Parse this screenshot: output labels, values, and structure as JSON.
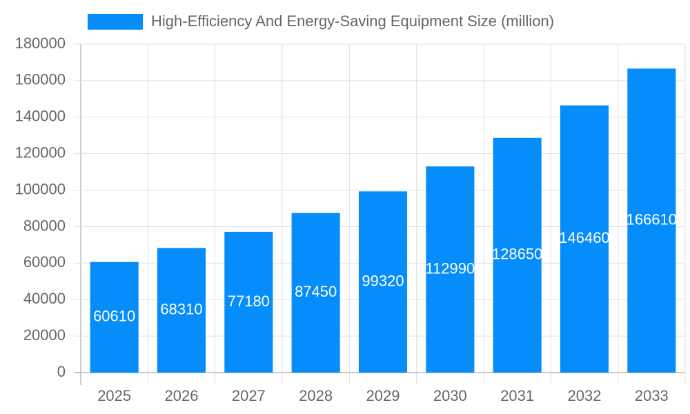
{
  "chart_data": {
    "type": "bar",
    "categories": [
      "2025",
      "2026",
      "2027",
      "2028",
      "2029",
      "2030",
      "2031",
      "2032",
      "2033"
    ],
    "series": [
      {
        "name": "High-Efficiency And Energy-Saving Equipment Size (million)",
        "color": "#058dfc",
        "values": [
          60610,
          68310,
          77180,
          87450,
          99320,
          112990,
          128650,
          146460,
          166610
        ]
      }
    ],
    "ylim": [
      0,
      180000
    ],
    "yticks": [
      0,
      20000,
      40000,
      60000,
      80000,
      100000,
      120000,
      140000,
      160000,
      180000
    ],
    "grid": true,
    "legend": "top"
  }
}
